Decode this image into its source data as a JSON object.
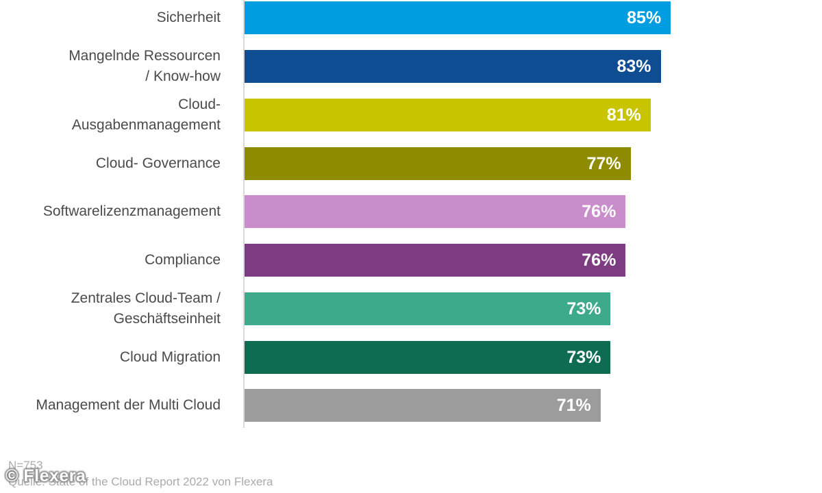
{
  "chart_data": {
    "type": "bar",
    "orientation": "horizontal",
    "title": "",
    "xlabel": "",
    "ylabel": "",
    "xlim": [
      0,
      100
    ],
    "grid": false,
    "legend": false,
    "value_suffix": "%",
    "axis_line_color": "#D9D9D9",
    "categories": [
      "Sicherheit",
      "Mangelnde Ressourcen\n/ Know-how",
      "Cloud-\nAusgabenmanagement",
      "Cloud- Governance",
      "Softwarelizenzmanagement",
      "Compliance",
      "Zentrales Cloud-Team /\nGeschäftseinheit",
      "Cloud Migration",
      "Management der Multi Cloud"
    ],
    "values": [
      85,
      83,
      81,
      77,
      76,
      76,
      73,
      73,
      71
    ],
    "colors": [
      "#009EE0",
      "#0E4D92",
      "#C9C400",
      "#8F8B00",
      "#C98DCB",
      "#7D3C82",
      "#3EAA8C",
      "#0D6C52",
      "#9C9C9C"
    ]
  },
  "footer": {
    "sample_size": "N=753",
    "source": "Quelle: State of the Cloud Report 2022 von Flexera",
    "watermark": "© Flexera"
  }
}
